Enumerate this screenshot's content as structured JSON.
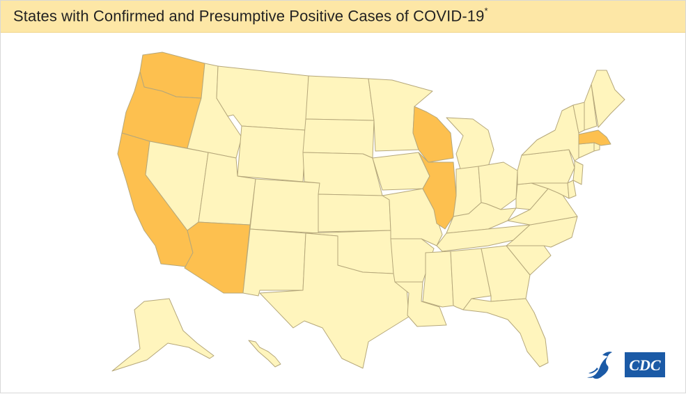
{
  "header": {
    "title": "States with Confirmed and Presumptive Positive Cases of COVID-19",
    "footnote_marker": "*"
  },
  "colors": {
    "header_background": "#fde7a6",
    "no_cases": "#fff5bd",
    "cases": "#fdc04f",
    "border": "#b5a77a",
    "cdc_blue": "#1b5aa6"
  },
  "map_data": {
    "states_with_cases": [
      "Washington",
      "Oregon",
      "California",
      "Arizona",
      "Wisconsin",
      "Illinois",
      "Massachusetts"
    ]
  },
  "logo": {
    "text": "CDC"
  }
}
